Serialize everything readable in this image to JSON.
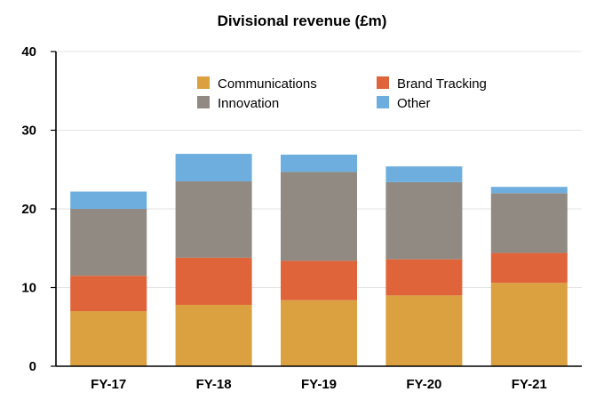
{
  "chart_data": {
    "type": "bar",
    "stacked": true,
    "title": "Divisional revenue (£m)",
    "xlabel": "",
    "ylabel": "",
    "categories": [
      "FY-17",
      "FY-18",
      "FY-19",
      "FY-20",
      "FY-21"
    ],
    "ylim": [
      0,
      40
    ],
    "yticks": [
      0,
      10,
      20,
      30,
      40
    ],
    "grid": true,
    "legend_position": "top-center",
    "series": [
      {
        "name": "Communications",
        "color": "#dba040",
        "values": [
          7.0,
          7.8,
          8.4,
          9.0,
          10.6
        ]
      },
      {
        "name": "Brand Tracking",
        "color": "#e0643a",
        "values": [
          4.5,
          6.0,
          5.0,
          4.6,
          3.8
        ]
      },
      {
        "name": "Innovation",
        "color": "#918a82",
        "values": [
          8.5,
          9.7,
          11.3,
          9.8,
          7.6
        ]
      },
      {
        "name": "Other",
        "color": "#6eaedf",
        "values": [
          2.2,
          3.5,
          2.2,
          2.0,
          0.8
        ]
      }
    ]
  }
}
